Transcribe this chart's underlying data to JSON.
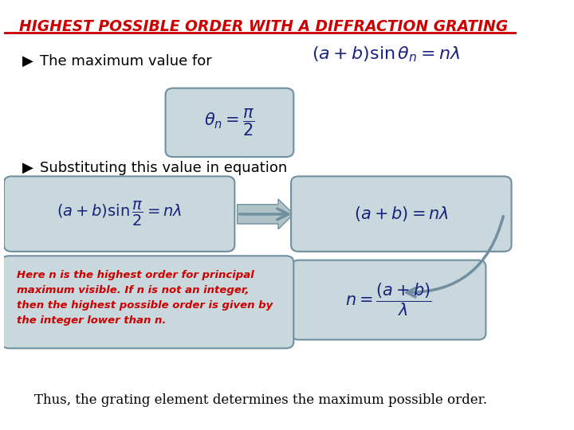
{
  "title": "HIGHEST POSSIBLE ORDER WITH A DIFFRACTION GRATING",
  "title_color": "#CC0000",
  "title_underline": true,
  "title_italic": true,
  "bg_color": "#FFFFFF",
  "box_fill": "#B0C4C8",
  "box_fill_light": "#C8D8DC",
  "box_border": "#7090A0",
  "bullet1": "The maximum value for",
  "bullet2": "Substituting this value in equation",
  "note_text": "Here n is the highest order for principal\nmaximum visible. If n is not an integer,\nthen the highest possible order is given by\nthe integer lower than n.",
  "bottom_text": "Thus, the grating element determines the maximum possible order.",
  "eq_main": "$(a + b)\\sin\\theta_n = n\\lambda$",
  "eq_theta": "$\\theta_n = \\dfrac{\\pi}{2}$",
  "eq_left": "$(a + b)\\sin\\dfrac{\\pi}{2} = n\\lambda$",
  "eq_right": "$(a + b) = n\\lambda$",
  "eq_n": "$n = \\dfrac{(a+b)}{\\lambda}$",
  "text_color_dark": "#1A237E",
  "text_color_red": "#CC0000",
  "arrow_color": "#7090A0"
}
